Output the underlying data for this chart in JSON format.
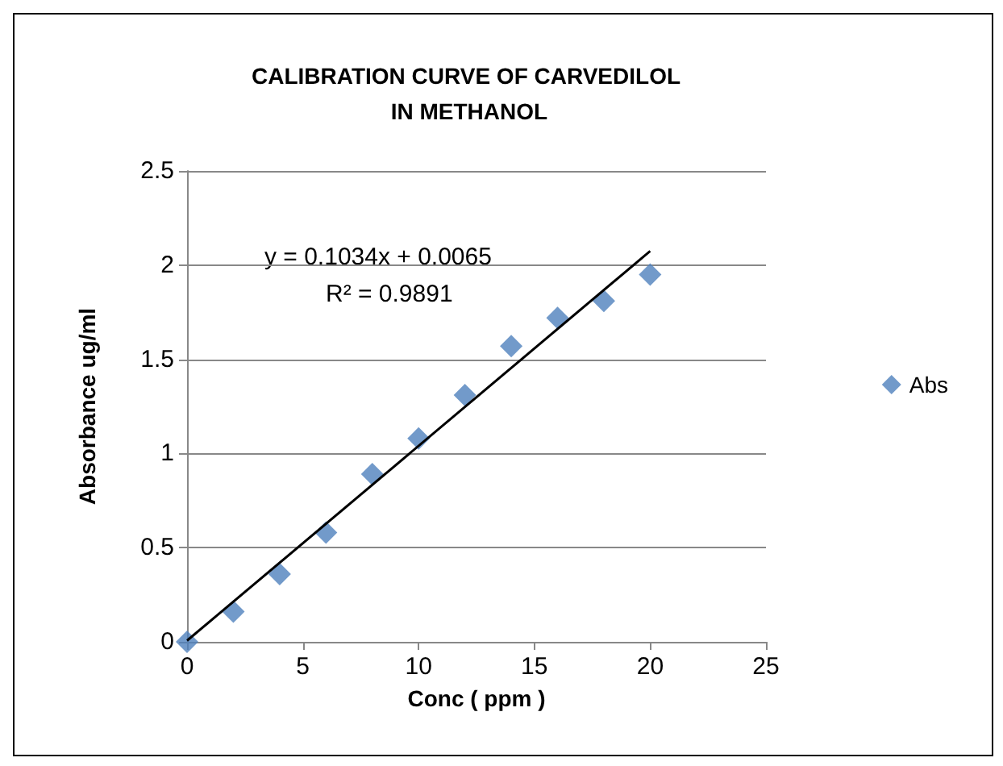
{
  "chart_data": {
    "type": "scatter",
    "title": "CALIBRATION CURVE OF CARVEDILOL IN METHANOL",
    "xlabel": "Conc ( ppm )",
    "ylabel": "Absorbance ug/ml",
    "x": [
      0,
      2,
      4,
      6,
      8,
      10,
      12,
      14,
      16,
      18,
      20
    ],
    "series": [
      {
        "name": "Abs",
        "color": "#4f81bd",
        "values": [
          0,
          0.16,
          0.36,
          0.58,
          0.89,
          1.08,
          1.31,
          1.57,
          1.72,
          1.81,
          1.95
        ]
      },
      {
        "type": "line",
        "color": "#000000",
        "x": [
          0,
          20
        ],
        "values": [
          0.0065,
          2.0745
        ],
        "marker": "none"
      }
    ],
    "xlim": [
      0,
      25
    ],
    "xticks": [
      0,
      5,
      10,
      15,
      20,
      25
    ],
    "ylim": [
      0,
      2.5
    ],
    "yticks": [
      0,
      0.5,
      1,
      1.5,
      2,
      2.5
    ],
    "grid": "y",
    "legend": "right",
    "marker": "diamond",
    "annotations": [
      "y = 0.1034x + 0.0065",
      "R² = 0.9891"
    ]
  }
}
